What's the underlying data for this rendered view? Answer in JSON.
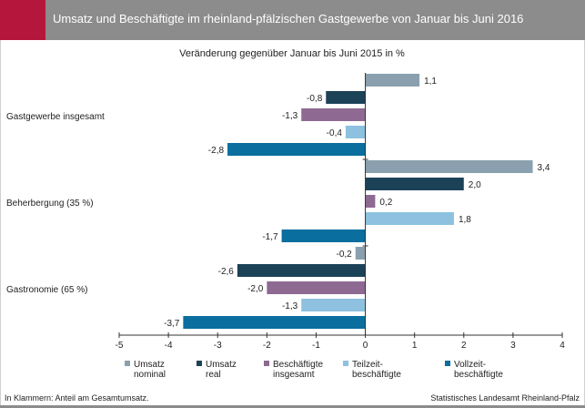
{
  "header": {
    "title": "Umsatz und Beschäftigte im rheinland-pfälzischen Gastgewerbe von Januar bis Juni 2016",
    "accent_color": "#b5173c",
    "bar_color": "#8c8c8c"
  },
  "footer": {
    "note": "In Klammern: Anteil am Gesamtumsatz.",
    "source": "Statistisches Landesamt Rheinland-Pfalz"
  },
  "chart_data": {
    "type": "bar",
    "orientation": "horizontal",
    "title": "Veränderung gegenüber Januar bis Juni 2015 in %",
    "categories": [
      "Gastgewerbe insgesamt",
      "Beherbergung (35 %)",
      "Gastronomie (65 %)"
    ],
    "series": [
      {
        "name": "Umsatz nominal",
        "color": "#8aa0ae",
        "values": [
          1.1,
          3.4,
          -0.2
        ]
      },
      {
        "name": "Umsatz real",
        "color": "#1c4258",
        "values": [
          -0.8,
          2.0,
          -2.6
        ]
      },
      {
        "name": "Beschäftigte insgesamt",
        "color": "#8e6a93",
        "values": [
          -1.3,
          0.2,
          -2.0
        ]
      },
      {
        "name": "Teilzeit-beschäftigte",
        "color": "#8dc1df",
        "values": [
          -0.4,
          1.8,
          -1.3
        ]
      },
      {
        "name": "Vollzeit-beschäftigte",
        "color": "#0a6e9e",
        "values": [
          -2.8,
          -1.7,
          -3.7
        ]
      }
    ],
    "value_labels": [
      [
        "1,1",
        "3,4",
        "-0,2"
      ],
      [
        "-0,8",
        "2,0",
        "-2,6"
      ],
      [
        "-1,3",
        "0,2",
        "-2,0"
      ],
      [
        "-0,4",
        "1,8",
        "-1,3"
      ],
      [
        "-2,8",
        "-1,7",
        "-3,7"
      ]
    ],
    "legend": [
      [
        "Umsatz",
        "nominal"
      ],
      [
        "Umsatz",
        "real"
      ],
      [
        "Beschäftigte",
        "insgesamt"
      ],
      [
        "Teilzeit-",
        "beschäftigte"
      ],
      [
        "Vollzeit-",
        "beschäftigte"
      ]
    ],
    "xlim": [
      -5,
      4
    ],
    "xticks": [
      -5,
      -4,
      -3,
      -2,
      -1,
      0,
      1,
      2,
      3,
      4
    ],
    "grid": false,
    "legend_position": "bottom"
  }
}
